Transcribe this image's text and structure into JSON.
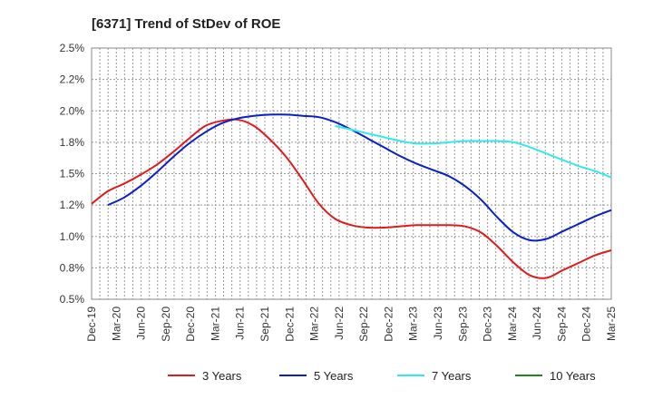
{
  "chart_data": {
    "type": "line",
    "title": "[6371]  Trend of StDev of ROE",
    "xlabel": "",
    "ylabel": "",
    "y_ticks": [
      "0.5%",
      "0.8%",
      "1.0%",
      "1.2%",
      "1.5%",
      "1.8%",
      "2.0%",
      "2.2%",
      "2.5%"
    ],
    "ylim": [
      0.5,
      2.5
    ],
    "x_ticks": [
      "Dec-19",
      "Mar-20",
      "Jun-20",
      "Sep-20",
      "Dec-20",
      "Mar-21",
      "Jun-21",
      "Sep-21",
      "Dec-21",
      "Mar-22",
      "Jun-22",
      "Sep-22",
      "Dec-22",
      "Mar-23",
      "Jun-23",
      "Sep-23",
      "Dec-23",
      "Mar-24",
      "Jun-24",
      "Sep-24",
      "Dec-24",
      "Mar-25"
    ],
    "grid": true,
    "legend_position": "bottom",
    "series": [
      {
        "name": "3 Years",
        "color": "#e31a1c",
        "points": [
          [
            0,
            1.26
          ],
          [
            1,
            1.36
          ],
          [
            2,
            1.42
          ],
          [
            3,
            1.49
          ],
          [
            4,
            1.57
          ],
          [
            5,
            1.67
          ],
          [
            6,
            1.78
          ],
          [
            7,
            1.88
          ],
          [
            8,
            1.92
          ],
          [
            9,
            1.93
          ],
          [
            10,
            1.88
          ],
          [
            11,
            1.77
          ],
          [
            12,
            1.63
          ],
          [
            13,
            1.45
          ],
          [
            14,
            1.26
          ],
          [
            15,
            1.14
          ],
          [
            16,
            1.09
          ],
          [
            17,
            1.07
          ],
          [
            18,
            1.07
          ],
          [
            19,
            1.08
          ],
          [
            20,
            1.09
          ],
          [
            21,
            1.09
          ],
          [
            22,
            1.09
          ],
          [
            23,
            1.08
          ],
          [
            24,
            1.03
          ],
          [
            25,
            0.92
          ],
          [
            26,
            0.79
          ],
          [
            27,
            0.69
          ],
          [
            28,
            0.67
          ],
          [
            29,
            0.73
          ],
          [
            30,
            0.79
          ],
          [
            31,
            0.85
          ],
          [
            32,
            0.89
          ]
        ]
      },
      {
        "name": "5 Years",
        "color": "#0a1fcc",
        "points": [
          [
            1,
            1.25
          ],
          [
            2,
            1.31
          ],
          [
            3,
            1.4
          ],
          [
            4,
            1.51
          ],
          [
            5,
            1.63
          ],
          [
            6,
            1.74
          ],
          [
            7,
            1.83
          ],
          [
            8,
            1.9
          ],
          [
            9,
            1.94
          ],
          [
            10,
            1.96
          ],
          [
            11,
            1.97
          ],
          [
            12,
            1.97
          ],
          [
            13,
            1.96
          ],
          [
            14,
            1.95
          ],
          [
            15,
            1.91
          ],
          [
            16,
            1.85
          ],
          [
            17,
            1.78
          ],
          [
            18,
            1.71
          ],
          [
            19,
            1.64
          ],
          [
            20,
            1.58
          ],
          [
            21,
            1.53
          ],
          [
            22,
            1.48
          ],
          [
            23,
            1.4
          ],
          [
            24,
            1.29
          ],
          [
            25,
            1.15
          ],
          [
            26,
            1.03
          ],
          [
            27,
            0.97
          ],
          [
            28,
            0.98
          ],
          [
            29,
            1.04
          ],
          [
            30,
            1.1
          ],
          [
            31,
            1.16
          ],
          [
            32,
            1.21
          ]
        ]
      },
      {
        "name": "7 Years",
        "color": "#33eaea",
        "points": [
          [
            15,
            1.88
          ],
          [
            16,
            1.85
          ],
          [
            17,
            1.82
          ],
          [
            18,
            1.79
          ],
          [
            19,
            1.76
          ],
          [
            20,
            1.74
          ],
          [
            21,
            1.74
          ],
          [
            22,
            1.75
          ],
          [
            23,
            1.76
          ],
          [
            24,
            1.76
          ],
          [
            25,
            1.76
          ],
          [
            26,
            1.75
          ],
          [
            27,
            1.71
          ],
          [
            28,
            1.66
          ],
          [
            29,
            1.61
          ],
          [
            30,
            1.56
          ],
          [
            31,
            1.52
          ],
          [
            32,
            1.47
          ]
        ]
      },
      {
        "name": "10 Years",
        "color": "#1e8a1e",
        "points": []
      }
    ]
  }
}
